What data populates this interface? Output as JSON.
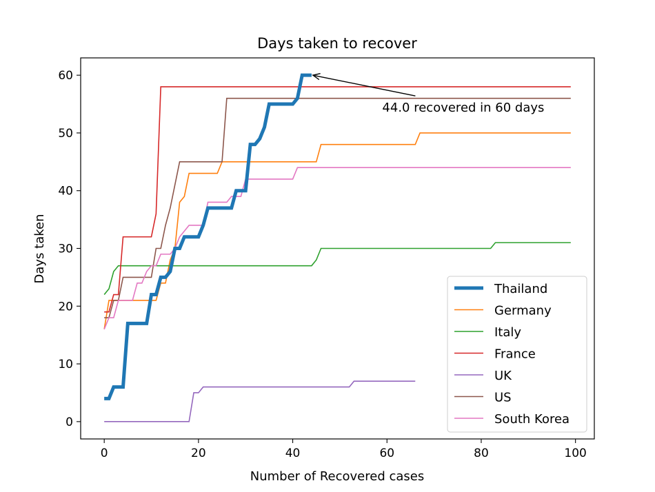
{
  "chart_data": {
    "type": "line",
    "title": "Days taken to recover",
    "xlabel": "Number of Recovered cases",
    "ylabel": "Days taken",
    "xlim": [
      -5,
      104
    ],
    "ylim": [
      -3,
      63
    ],
    "xticks": [
      0,
      20,
      40,
      60,
      80,
      100
    ],
    "yticks": [
      0,
      10,
      20,
      30,
      40,
      50,
      60
    ],
    "grid": false,
    "legend_position": "lower-right",
    "annotation": {
      "text": "44.0 recovered in 60 days",
      "point": [
        44,
        60
      ],
      "text_at": [
        59,
        54.5
      ]
    },
    "series": [
      {
        "name": "Thailand",
        "color": "#1f77b4",
        "emphasis": true,
        "points": [
          [
            0,
            4
          ],
          [
            1,
            4
          ],
          [
            2,
            6
          ],
          [
            4,
            6
          ],
          [
            5,
            17
          ],
          [
            9,
            17
          ],
          [
            10,
            22
          ],
          [
            11,
            22
          ],
          [
            12,
            25
          ],
          [
            13,
            25
          ],
          [
            14,
            26
          ],
          [
            15,
            30
          ],
          [
            16,
            30
          ],
          [
            17,
            32
          ],
          [
            20,
            32
          ],
          [
            21,
            34
          ],
          [
            22,
            37
          ],
          [
            27,
            37
          ],
          [
            28,
            40
          ],
          [
            30,
            40
          ],
          [
            31,
            48
          ],
          [
            32,
            48
          ],
          [
            33,
            49
          ],
          [
            34,
            51
          ],
          [
            35,
            55
          ],
          [
            40,
            55
          ],
          [
            41,
            56
          ],
          [
            42,
            60
          ],
          [
            44,
            60
          ]
        ]
      },
      {
        "name": "Germany",
        "color": "#ff7f0e",
        "points": [
          [
            0,
            16
          ],
          [
            1,
            21
          ],
          [
            11,
            21
          ],
          [
            12,
            24
          ],
          [
            13,
            24
          ],
          [
            14,
            28
          ],
          [
            15,
            30
          ],
          [
            16,
            38
          ],
          [
            17,
            39
          ],
          [
            18,
            43
          ],
          [
            24,
            43
          ],
          [
            25,
            45
          ],
          [
            45,
            45
          ],
          [
            46,
            48
          ],
          [
            66,
            48
          ],
          [
            67,
            50
          ],
          [
            99,
            50
          ]
        ]
      },
      {
        "name": "Italy",
        "color": "#2ca02c",
        "points": [
          [
            0,
            22
          ],
          [
            1,
            23
          ],
          [
            2,
            26
          ],
          [
            3,
            27
          ],
          [
            44,
            27
          ],
          [
            45,
            28
          ],
          [
            46,
            30
          ],
          [
            82,
            30
          ],
          [
            83,
            31
          ],
          [
            99,
            31
          ]
        ]
      },
      {
        "name": "France",
        "color": "#d62728",
        "points": [
          [
            0,
            19
          ],
          [
            1,
            19
          ],
          [
            2,
            22
          ],
          [
            3,
            22
          ],
          [
            4,
            32
          ],
          [
            10,
            32
          ],
          [
            11,
            36
          ],
          [
            12,
            58
          ],
          [
            99,
            58
          ]
        ]
      },
      {
        "name": "UK",
        "color": "#9467bd",
        "points": [
          [
            0,
            0
          ],
          [
            18,
            0
          ],
          [
            19,
            5
          ],
          [
            20,
            5
          ],
          [
            21,
            6
          ],
          [
            52,
            6
          ],
          [
            53,
            7
          ],
          [
            66,
            7
          ]
        ]
      },
      {
        "name": "US",
        "color": "#8c564b",
        "points": [
          [
            0,
            18
          ],
          [
            1,
            18
          ],
          [
            2,
            21
          ],
          [
            3,
            21
          ],
          [
            4,
            25
          ],
          [
            10,
            25
          ],
          [
            11,
            30
          ],
          [
            12,
            30
          ],
          [
            13,
            34
          ],
          [
            14,
            37
          ],
          [
            15,
            41
          ],
          [
            16,
            45
          ],
          [
            25,
            45
          ],
          [
            26,
            56
          ],
          [
            99,
            56
          ]
        ]
      },
      {
        "name": "South Korea",
        "color": "#e377c2",
        "points": [
          [
            0,
            16
          ],
          [
            1,
            18
          ],
          [
            2,
            18
          ],
          [
            3,
            21
          ],
          [
            6,
            21
          ],
          [
            7,
            24
          ],
          [
            8,
            24
          ],
          [
            9,
            26
          ],
          [
            10,
            27
          ],
          [
            11,
            27
          ],
          [
            12,
            29
          ],
          [
            14,
            29
          ],
          [
            15,
            30
          ],
          [
            16,
            32
          ],
          [
            17,
            33
          ],
          [
            18,
            34
          ],
          [
            21,
            34
          ],
          [
            22,
            38
          ],
          [
            26,
            38
          ],
          [
            27,
            39
          ],
          [
            29,
            39
          ],
          [
            30,
            42
          ],
          [
            40,
            42
          ],
          [
            41,
            44
          ],
          [
            99,
            44
          ]
        ]
      }
    ]
  }
}
